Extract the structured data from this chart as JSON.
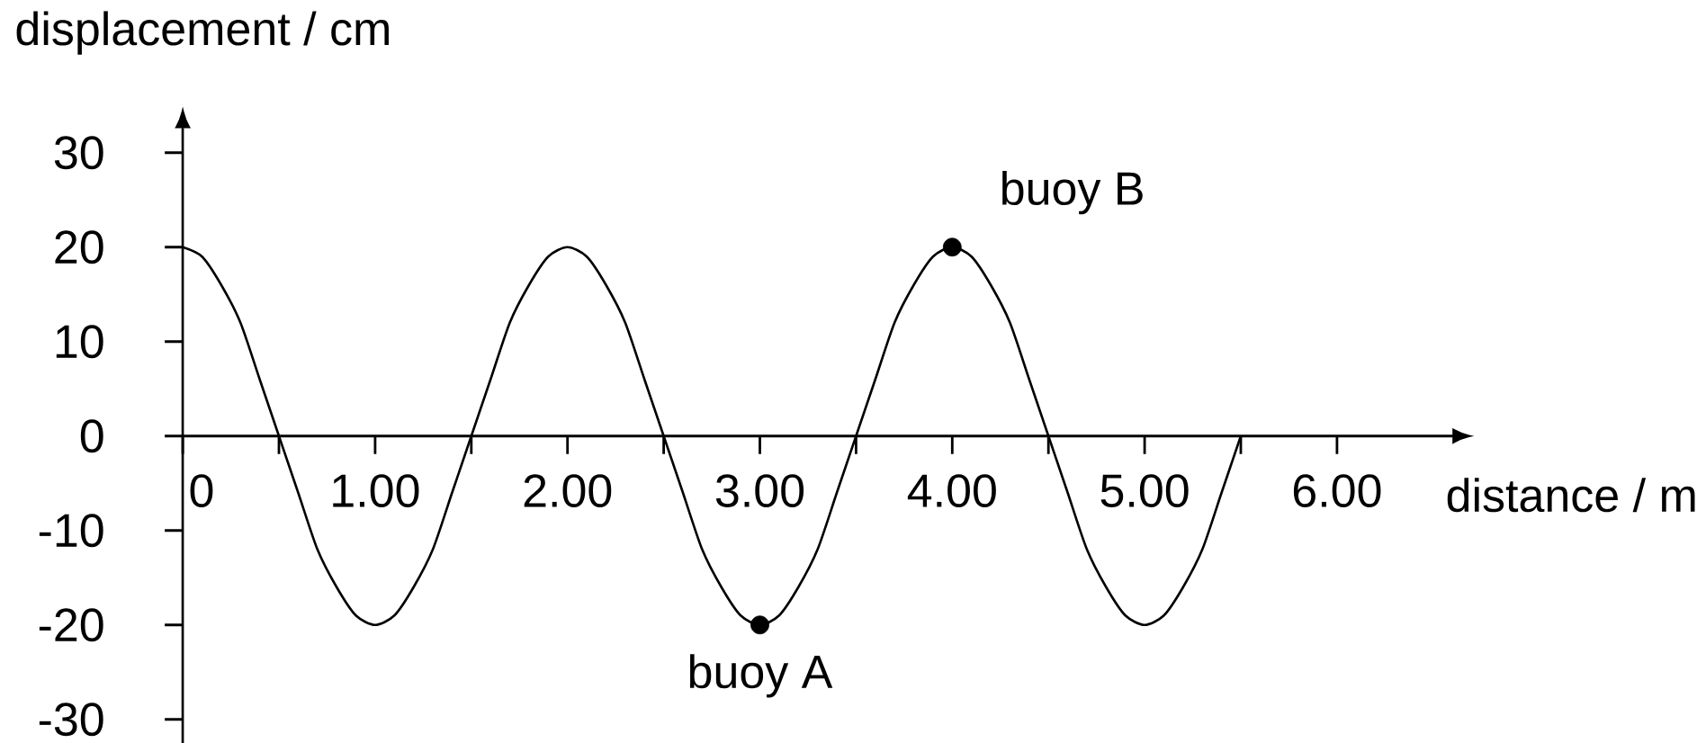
{
  "chart_data": {
    "type": "line",
    "xlabel": "distance / m",
    "ylabel": "displacement / cm",
    "xlim": [
      0,
      6.6
    ],
    "ylim": [
      -32.5,
      32.6
    ],
    "xticks": [
      0,
      {
        "value": 0.5,
        "label": null
      },
      {
        "value": 1,
        "label": "1.00"
      },
      {
        "value": 1.5,
        "label": null
      },
      {
        "value": 2,
        "label": "2.00"
      },
      {
        "value": 2.5,
        "label": null
      },
      {
        "value": 3,
        "label": "3.00"
      },
      {
        "value": 3.5,
        "label": null
      },
      {
        "value": 4,
        "label": "4.00"
      },
      {
        "value": 4.5,
        "label": null
      },
      {
        "value": 5,
        "label": "5.00"
      },
      {
        "value": 5.5,
        "label": null
      },
      {
        "value": 6,
        "label": "6.00"
      }
    ],
    "yticks": [
      -30,
      -20,
      -10,
      0,
      10,
      20,
      30
    ],
    "series": [
      {
        "color": "#000000",
        "marker": "none",
        "x": [
          0,
          0.1,
          0.2,
          0.3,
          0.4,
          0.5,
          0.6,
          0.7,
          0.8,
          0.9,
          1,
          1.1,
          1.2,
          1.3,
          1.4,
          1.5,
          1.6,
          1.7,
          1.8,
          1.9,
          2,
          2.1,
          2.2,
          2.3,
          2.4,
          2.5,
          2.6,
          2.7,
          2.8,
          2.9,
          3,
          3.1,
          3.2,
          3.3,
          3.4,
          3.5,
          3.6,
          3.7,
          3.8,
          3.9,
          4,
          4.1,
          4.2,
          4.3,
          4.4,
          4.5,
          4.6,
          4.7,
          4.8,
          4.9,
          5,
          5.1,
          5.2,
          5.3,
          5.4,
          5.5
        ],
        "values": [
          20,
          19,
          16,
          12,
          6,
          0,
          -6,
          -12,
          -16,
          -19,
          -20,
          -19,
          -16,
          -12,
          -6,
          0,
          6,
          12,
          16,
          19,
          20,
          19,
          16,
          12,
          6,
          0,
          -6,
          -12,
          -16,
          -19,
          -20,
          -19,
          -16,
          -12,
          -6,
          0,
          6,
          12,
          16,
          19,
          20,
          19,
          16,
          12,
          6,
          0,
          -6,
          -12,
          -16,
          -19,
          -20,
          -19,
          -16,
          -12,
          -6,
          0
        ]
      },
      {
        "type": "scatter",
        "name": "buoy A",
        "color": "#000000",
        "marker": "circle",
        "x": [
          3
        ],
        "values": [
          -20
        ]
      },
      {
        "type": "scatter",
        "name": "buoy B",
        "color": "#000000",
        "marker": "circle",
        "x": [
          4
        ],
        "values": [
          20
        ]
      }
    ]
  }
}
